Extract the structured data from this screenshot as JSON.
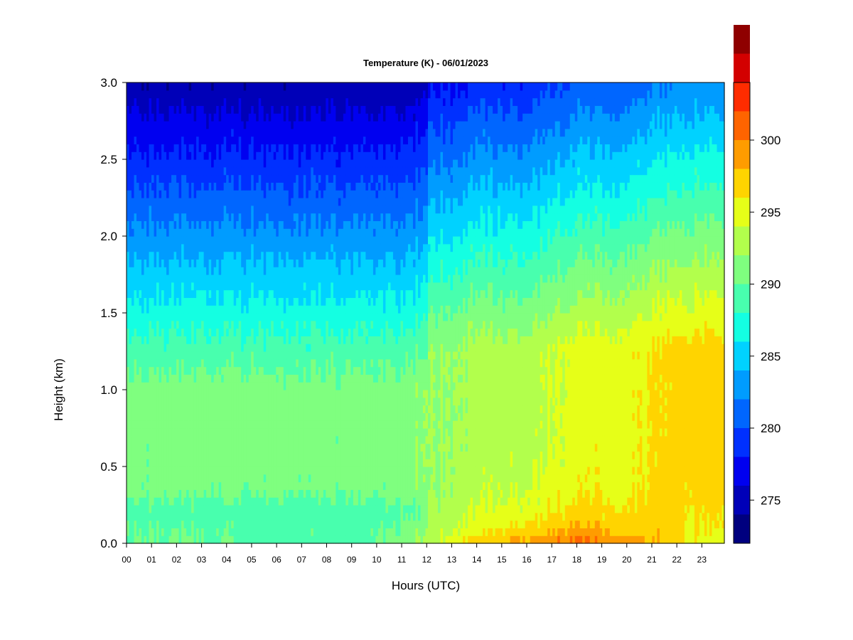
{
  "chart_data": {
    "type": "heatmap",
    "title": "Temperature (K) - 06/01/2023",
    "xlabel": "Hours (UTC)",
    "ylabel": "Height (km)",
    "x_ticks": [
      "00",
      "01",
      "02",
      "03",
      "04",
      "05",
      "06",
      "07",
      "08",
      "09",
      "10",
      "11",
      "12",
      "13",
      "14",
      "15",
      "16",
      "17",
      "18",
      "19",
      "20",
      "21",
      "22",
      "23"
    ],
    "xlim": [
      0,
      23.9
    ],
    "y_ticks": [
      "0.0",
      "0.5",
      "1.0",
      "1.5",
      "2.0",
      "2.5",
      "3.0"
    ],
    "ylim": [
      0,
      3.0
    ],
    "colorbar": {
      "min": 272,
      "max": 304,
      "step": 2,
      "tick_values": [
        275,
        280,
        285,
        290,
        295,
        300
      ],
      "tick_labels": [
        "275",
        "280",
        "285",
        "290",
        "295",
        "300"
      ],
      "colors": [
        "#00007F",
        "#0000B8",
        "#0000F0",
        "#0030FF",
        "#0066FF",
        "#009CFF",
        "#00D2FF",
        "#14FFE2",
        "#48FFAE",
        "#7FFF7F",
        "#B2FF4C",
        "#E6FF18",
        "#FFD400",
        "#FF9C00",
        "#FF6400",
        "#FF2C00",
        "#D30000",
        "#8F0000"
      ]
    },
    "grid": false,
    "legend": "colorbar-right",
    "surface_temperature_by_hour": [
      290,
      290,
      290,
      290,
      290,
      289,
      289,
      289,
      289,
      289,
      290,
      291,
      293,
      295,
      297,
      298,
      299,
      300,
      301,
      300,
      299,
      298,
      297,
      295
    ],
    "mixed_layer_temperature_by_hour": [
      291,
      291,
      291,
      291,
      291,
      291,
      291,
      291,
      291,
      291,
      291,
      291,
      292,
      292,
      293,
      293,
      293,
      294,
      295,
      295,
      295,
      296,
      297,
      297
    ]
  }
}
